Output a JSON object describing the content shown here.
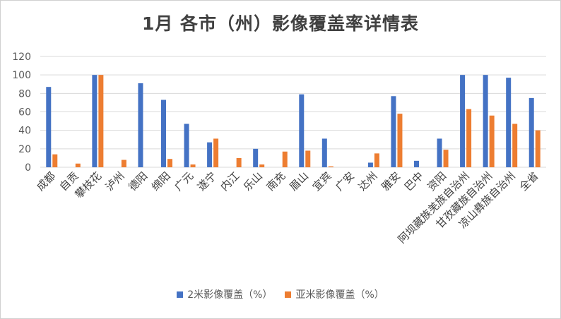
{
  "chart_data": {
    "type": "bar",
    "title": "1月 各市（州）影像覆盖率详情表",
    "xlabel": "",
    "ylabel": "",
    "ylim": [
      0,
      120
    ],
    "yticks": [
      "0",
      "20",
      "40",
      "60",
      "80",
      "100",
      "120"
    ],
    "grid": true,
    "legend_position": "bottom",
    "categories": [
      "成都",
      "自贡",
      "攀枝花",
      "泸州",
      "德阳",
      "绵阳",
      "广元",
      "遂宁",
      "内江",
      "乐山",
      "南充",
      "眉山",
      "宜宾",
      "广安",
      "达州",
      "雅安",
      "巴中",
      "资阳",
      "阿坝藏族羌族自治州",
      "甘孜藏族自治州",
      "凉山彝族自治州",
      "全省"
    ],
    "series": [
      {
        "name": "2米影像覆盖（%）",
        "color": "#4472C4",
        "values": [
          87,
          0,
          100,
          0,
          91,
          73,
          47,
          27,
          0,
          20,
          0,
          79,
          31,
          0,
          5,
          77,
          7,
          31,
          100,
          100,
          97,
          75
        ]
      },
      {
        "name": "亚米影像覆盖（%）",
        "color": "#ED7D31",
        "values": [
          14,
          4,
          100,
          8,
          0,
          9,
          3,
          31,
          10,
          3,
          17,
          18,
          1,
          0,
          15,
          58,
          0,
          19,
          63,
          56,
          47,
          40
        ]
      }
    ]
  }
}
